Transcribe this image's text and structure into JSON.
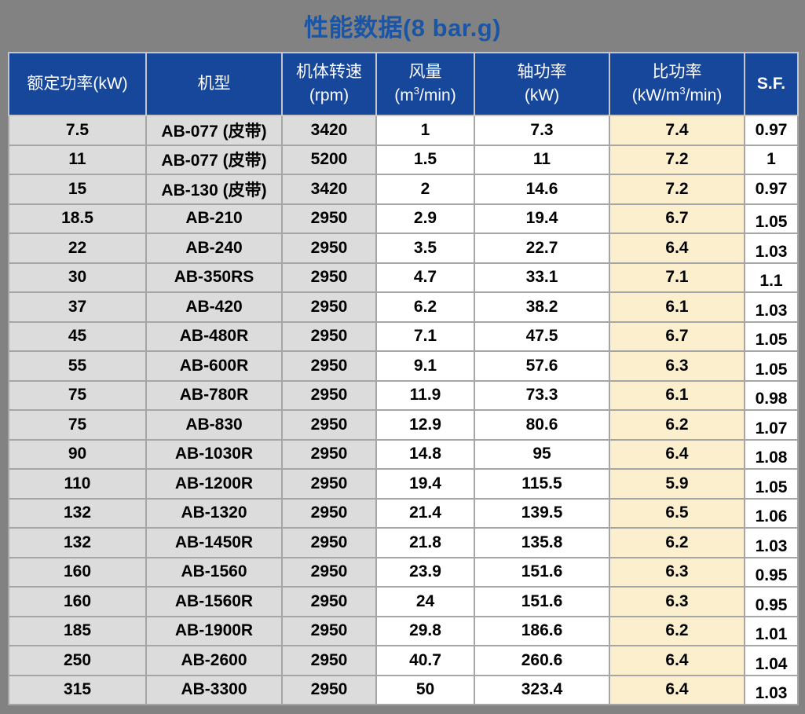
{
  "title": "性能数据(8 bar.g)",
  "colors": {
    "page_background": "#828282",
    "title_text": "#1A55A6",
    "header_background": "#17479B",
    "header_text": "#FFFFFF",
    "cell_gray": "#DCDCDC",
    "cell_white": "#FFFFFF",
    "cell_cream": "#FCEFCE",
    "data_border": "#A6A6A6",
    "header_border": "#C6C6C6",
    "data_text": "#000000"
  },
  "table": {
    "columns": [
      {
        "id": "rated-power",
        "label": "额定功率(kW)",
        "unit": ""
      },
      {
        "id": "model",
        "label": "机型",
        "unit": ""
      },
      {
        "id": "speed",
        "label": "机体转速",
        "unit": "(rpm)"
      },
      {
        "id": "air-flow",
        "label": "风量",
        "unit": "(m³/min)"
      },
      {
        "id": "shaft-power",
        "label": "轴功率",
        "unit": "(kW)"
      },
      {
        "id": "specific-power",
        "label": "比功率",
        "unit": "(kW/m³/min)"
      },
      {
        "id": "sf",
        "label": "S.F.",
        "unit": ""
      }
    ],
    "rows": [
      [
        "7.5",
        "AB-077 (皮带)",
        "3420",
        "1",
        "7.3",
        "7.4",
        "0.97"
      ],
      [
        "11",
        "AB-077 (皮带)",
        "5200",
        "1.5",
        "11",
        "7.2",
        "1"
      ],
      [
        "15",
        "AB-130 (皮带)",
        "3420",
        "2",
        "14.6",
        "7.2",
        "0.97"
      ],
      [
        "18.5",
        "AB-210",
        "2950",
        "2.9",
        "19.4",
        "6.7",
        "1.05"
      ],
      [
        "22",
        "AB-240",
        "2950",
        "3.5",
        "22.7",
        "6.4",
        "1.03"
      ],
      [
        "30",
        "AB-350RS",
        "2950",
        "4.7",
        "33.1",
        "7.1",
        "1.1"
      ],
      [
        "37",
        "AB-420",
        "2950",
        "6.2",
        "38.2",
        "6.1",
        "1.03"
      ],
      [
        "45",
        "AB-480R",
        "2950",
        "7.1",
        "47.5",
        "6.7",
        "1.05"
      ],
      [
        "55",
        "AB-600R",
        "2950",
        "9.1",
        "57.6",
        "6.3",
        "1.05"
      ],
      [
        "75",
        "AB-780R",
        "2950",
        "11.9",
        "73.3",
        "6.1",
        "0.98"
      ],
      [
        "75",
        "AB-830",
        "2950",
        "12.9",
        "80.6",
        "6.2",
        "1.07"
      ],
      [
        "90",
        "AB-1030R",
        "2950",
        "14.8",
        "95",
        "6.4",
        "1.08"
      ],
      [
        "110",
        "AB-1200R",
        "2950",
        "19.4",
        "115.5",
        "5.9",
        "1.05"
      ],
      [
        "132",
        "AB-1320",
        "2950",
        "21.4",
        "139.5",
        "6.5",
        "1.06"
      ],
      [
        "132",
        "AB-1450R",
        "2950",
        "21.8",
        "135.8",
        "6.2",
        "1.03"
      ],
      [
        "160",
        "AB-1560",
        "2950",
        "23.9",
        "151.6",
        "6.3",
        "0.95"
      ],
      [
        "160",
        "AB-1560R",
        "2950",
        "24",
        "151.6",
        "6.3",
        "0.95"
      ],
      [
        "185",
        "AB-1900R",
        "2950",
        "29.8",
        "186.6",
        "6.2",
        "1.01"
      ],
      [
        "250",
        "AB-2600",
        "2950",
        "40.7",
        "260.6",
        "6.4",
        "1.04"
      ],
      [
        "315",
        "AB-3300",
        "2950",
        "50",
        "323.4",
        "6.4",
        "1.03"
      ]
    ]
  }
}
